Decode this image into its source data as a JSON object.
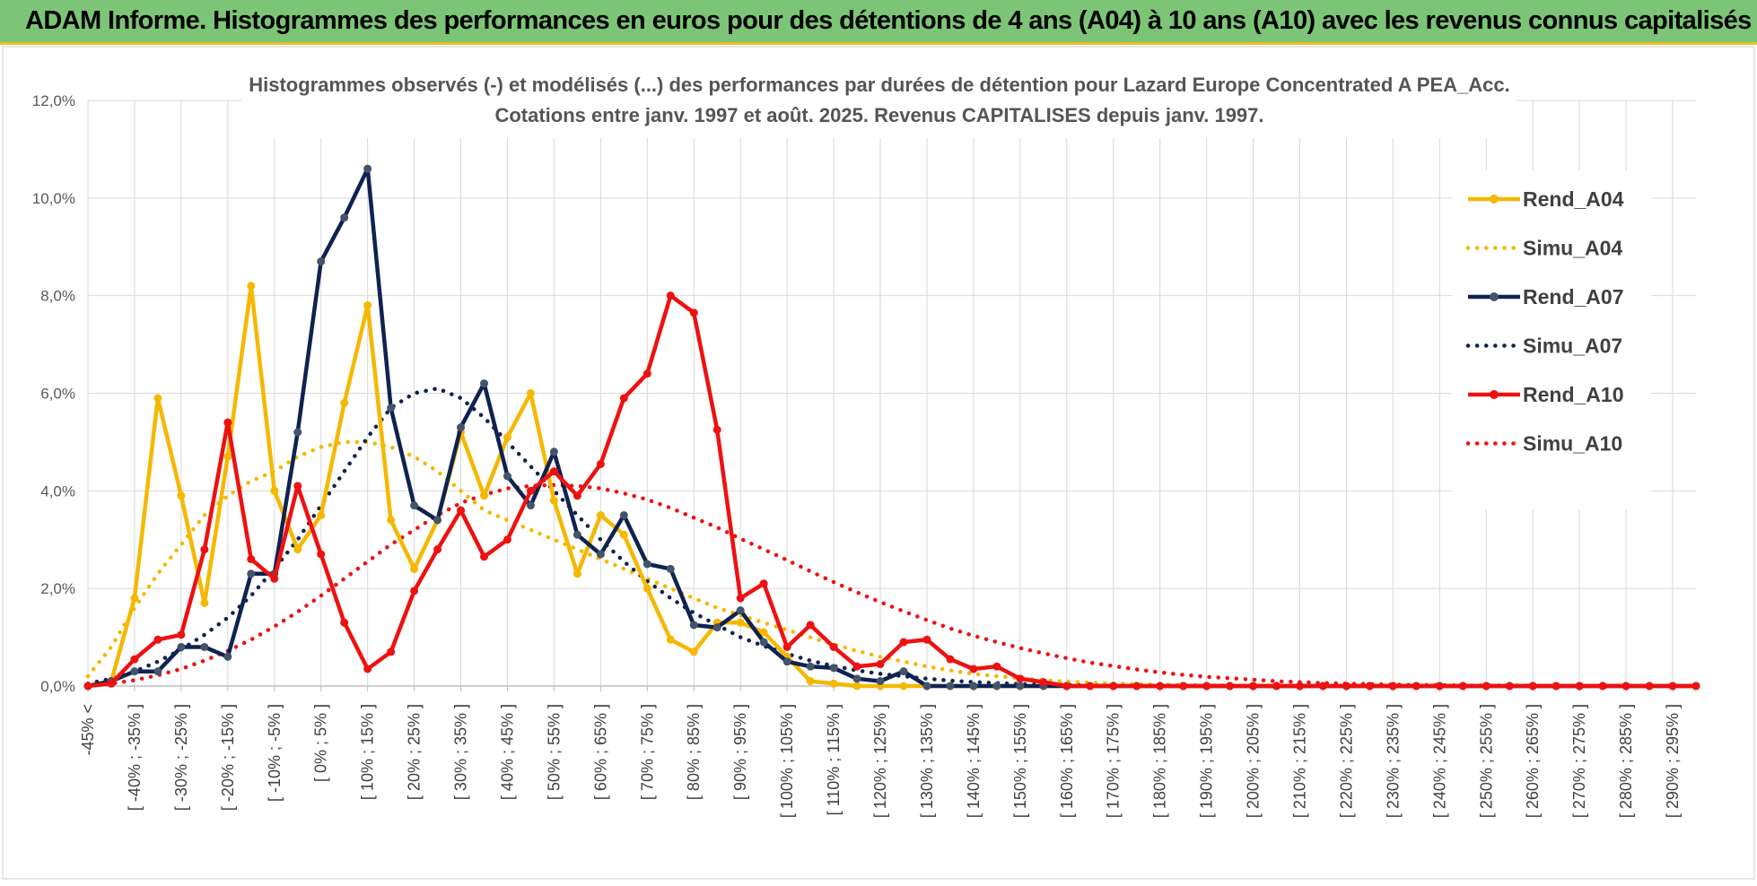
{
  "banner": {
    "title": "ADAM Informe. Histogrammes des performances en euros pour des détentions de 4 ans (A04) à 10 ans (A10) avec les revenus connus capitalisés"
  },
  "colors": {
    "banner_bg": "#7cc576",
    "A04": "#f5b800",
    "A07": "#0f2251",
    "A10": "#ee1111"
  },
  "chart_data": {
    "type": "line",
    "title": [
      "Histogrammes observés (-) et modélisés (...) des performances par durées de détention pour Lazard Europe Concentrated A PEA_Acc.",
      "Cotations entre janv. 1997 et août. 2025. Revenus CAPITALISES depuis janv. 1997."
    ],
    "ylim": [
      0,
      12
    ],
    "y_unit": "%",
    "yticks": [
      "0,0%",
      "2,0%",
      "4,0%",
      "6,0%",
      "8,0%",
      "10,0%",
      "12,0%"
    ],
    "grid": true,
    "legend_position": "right",
    "x_tick_labels": [
      "-45% <",
      "[ -40% ; -35% ]",
      "[ -30% ; -25% ]",
      "[ -20% ; -15% ]",
      "[ -10% ; -5% ]",
      "[ 0% ; 5% ]",
      "[ 10% ; 15% ]",
      "[ 20% ; 25% ]",
      "[ 30% ; 35% ]",
      "[ 40% ; 45% ]",
      "[ 50% ; 55% ]",
      "[ 60% ; 65% ]",
      "[ 70% ; 75% ]",
      "[ 80% ; 85% ]",
      "[ 90% ; 95% ]",
      "[ 100% ; 105% ]",
      "[ 110% ; 115% ]",
      "[ 120% ; 125% ]",
      "[ 130% ; 135% ]",
      "[ 140% ; 145% ]",
      "[ 150% ; 155% ]",
      "[ 160% ; 165% ]",
      "[ 170% ; 175% ]",
      "[ 180% ; 185% ]",
      "[ 190% ; 195% ]",
      "[ 200% ; 205% ]",
      "[ 210% ; 215% ]",
      "[ 220% ; 225% ]",
      "[ 230% ; 235% ]",
      "[ 240% ; 245% ]",
      "[ 250% ; 255% ]",
      "[ 260% ; 265% ]",
      "[ 270% ; 275% ]",
      "[ 280% ; 285% ]",
      "[ 290% ; 295% ]"
    ],
    "x_count": 70,
    "series": [
      {
        "name": "Rend_A04",
        "style": "solid",
        "color": "#f5b800",
        "values": [
          0,
          0.1,
          1.8,
          5.9,
          3.9,
          1.7,
          4.7,
          8.2,
          4.0,
          2.8,
          3.5,
          5.8,
          7.8,
          3.4,
          2.4,
          3.4,
          5.2,
          3.9,
          5.1,
          6.0,
          3.8,
          2.3,
          3.5,
          3.1,
          2.0,
          0.95,
          0.7,
          1.3,
          1.3,
          1.1,
          0.6,
          0.1,
          0.05,
          0,
          0,
          0,
          0,
          0,
          0,
          0,
          0,
          0,
          0,
          0,
          0,
          0,
          0,
          0,
          0,
          0,
          0,
          0,
          0,
          0,
          0,
          0,
          0,
          0,
          0,
          0,
          0,
          0,
          0,
          0,
          0,
          0,
          0,
          0,
          0,
          0
        ]
      },
      {
        "name": "Simu_A04",
        "style": "dotted",
        "color": "#f5b800",
        "values": [
          0.2,
          0.8,
          1.6,
          2.3,
          2.9,
          3.5,
          3.9,
          4.2,
          4.4,
          4.7,
          4.9,
          5.0,
          5.0,
          4.9,
          4.7,
          4.4,
          4.0,
          3.6,
          3.4,
          3.2,
          3.0,
          2.8,
          2.6,
          2.4,
          2.2,
          2.0,
          1.8,
          1.6,
          1.45,
          1.3,
          1.15,
          1.0,
          0.85,
          0.72,
          0.6,
          0.5,
          0.4,
          0.32,
          0.25,
          0.2,
          0.16,
          0.12,
          0.09,
          0.07,
          0.05,
          0.04,
          0.03,
          0.02,
          0.02,
          0.01,
          0.01,
          0.01,
          0,
          0,
          0,
          0,
          0,
          0,
          0,
          0,
          0,
          0,
          0,
          0,
          0,
          0,
          0,
          0,
          0,
          0
        ]
      },
      {
        "name": "Rend_A07",
        "style": "solid",
        "color": "#0f2251",
        "values": [
          0,
          0.1,
          0.3,
          0.3,
          0.8,
          0.8,
          0.6,
          2.3,
          2.3,
          5.2,
          8.7,
          9.6,
          10.6,
          5.7,
          3.7,
          3.4,
          5.3,
          6.2,
          4.3,
          3.7,
          4.8,
          3.1,
          2.7,
          3.5,
          2.5,
          2.4,
          1.25,
          1.2,
          1.55,
          0.9,
          0.5,
          0.4,
          0.37,
          0.15,
          0.1,
          0.3,
          0,
          0,
          0,
          0,
          0,
          0,
          0,
          0,
          0,
          0,
          0,
          0,
          0,
          0,
          0,
          0,
          0,
          0,
          0,
          0,
          0,
          0,
          0,
          0,
          0,
          0,
          0,
          0,
          0,
          0,
          0,
          0,
          0,
          0
        ]
      },
      {
        "name": "Simu_A07",
        "style": "dotted",
        "color": "#0f2251",
        "values": [
          0.05,
          0.15,
          0.3,
          0.5,
          0.75,
          1.05,
          1.4,
          1.85,
          2.4,
          3.0,
          3.7,
          4.4,
          5.1,
          5.7,
          6.0,
          6.1,
          5.9,
          5.5,
          5.0,
          4.5,
          4.0,
          3.5,
          3.0,
          2.55,
          2.15,
          1.8,
          1.5,
          1.25,
          1.0,
          0.82,
          0.66,
          0.52,
          0.41,
          0.32,
          0.25,
          0.2,
          0.15,
          0.11,
          0.08,
          0.06,
          0.04,
          0.03,
          0.02,
          0.01,
          0,
          0,
          0,
          0,
          0,
          0,
          0,
          0,
          0,
          0,
          0,
          0,
          0,
          0,
          0,
          0,
          0,
          0,
          0,
          0,
          0,
          0,
          0,
          0,
          0,
          0
        ]
      },
      {
        "name": "Rend_A10",
        "style": "solid",
        "color": "#ee1111",
        "values": [
          0,
          0.05,
          0.55,
          0.95,
          1.05,
          2.8,
          5.4,
          2.6,
          2.2,
          4.1,
          2.7,
          1.3,
          0.35,
          0.7,
          1.95,
          2.8,
          3.6,
          2.65,
          3.0,
          4.0,
          4.4,
          3.9,
          4.55,
          5.9,
          6.4,
          8.0,
          7.65,
          5.25,
          1.8,
          2.1,
          0.8,
          1.25,
          0.8,
          0.4,
          0.45,
          0.9,
          0.95,
          0.55,
          0.35,
          0.4,
          0.15,
          0.08,
          0,
          0,
          0,
          0,
          0,
          0,
          0,
          0,
          0,
          0,
          0,
          0,
          0,
          0,
          0,
          0,
          0,
          0,
          0,
          0,
          0,
          0,
          0,
          0,
          0,
          0,
          0,
          0
        ]
      },
      {
        "name": "Simu_A10",
        "style": "dotted",
        "color": "#ee1111",
        "values": [
          0.02,
          0.05,
          0.12,
          0.22,
          0.35,
          0.52,
          0.72,
          0.95,
          1.22,
          1.52,
          1.85,
          2.2,
          2.55,
          2.9,
          3.2,
          3.5,
          3.75,
          3.92,
          4.05,
          4.1,
          4.12,
          4.1,
          4.05,
          3.95,
          3.82,
          3.65,
          3.45,
          3.25,
          3.02,
          2.8,
          2.58,
          2.35,
          2.13,
          1.92,
          1.72,
          1.53,
          1.35,
          1.18,
          1.03,
          0.9,
          0.78,
          0.67,
          0.57,
          0.48,
          0.41,
          0.34,
          0.28,
          0.23,
          0.19,
          0.16,
          0.13,
          0.1,
          0.08,
          0.06,
          0.05,
          0.04,
          0.03,
          0.02,
          0.02,
          0.01,
          0.01,
          0.01,
          0.01,
          0,
          0,
          0,
          0,
          0,
          0,
          0
        ]
      }
    ]
  }
}
